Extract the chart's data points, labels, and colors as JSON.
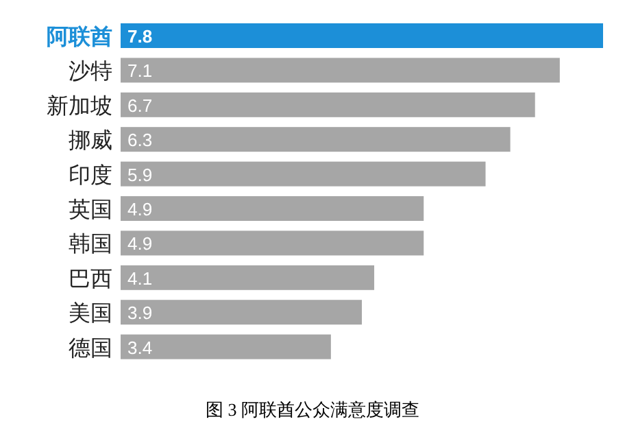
{
  "chart_data": {
    "type": "bar",
    "orientation": "horizontal",
    "title": "图 3  阿联酋公众满意度调查",
    "categories": [
      "阿联酋",
      "沙特",
      "新加坡",
      "挪威",
      "印度",
      "英国",
      "韩国",
      "巴西",
      "美国",
      "德国"
    ],
    "values": [
      7.8,
      7.1,
      6.7,
      6.3,
      5.9,
      4.9,
      4.9,
      4.1,
      3.9,
      3.4
    ],
    "colors": [
      "#1c8fd8",
      "#a6a6a6",
      "#a6a6a6",
      "#a6a6a6",
      "#a6a6a6",
      "#a6a6a6",
      "#a6a6a6",
      "#a6a6a6",
      "#a6a6a6",
      "#a6a6a6"
    ],
    "data_labels": true
  }
}
